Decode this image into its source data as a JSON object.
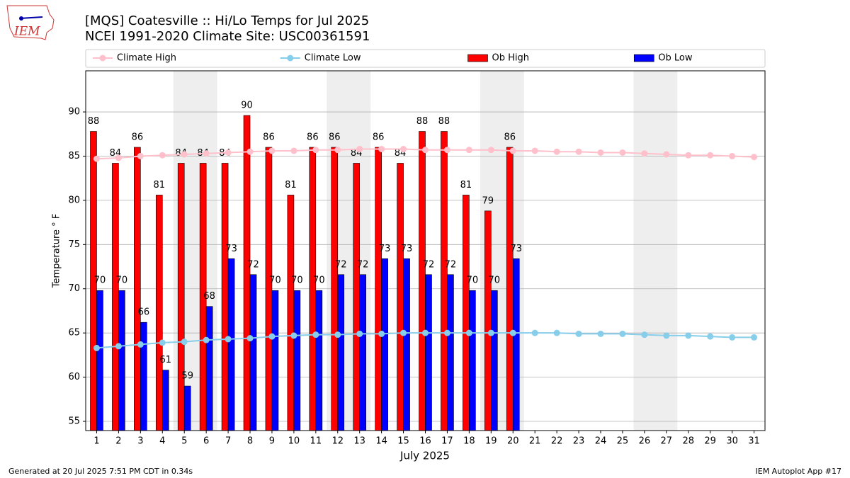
{
  "chart_data": {
    "type": "bar",
    "title": [
      "[MQS] Coatesville :: Hi/Lo Temps for Jul 2025",
      "NCEI 1991-2020 Climate Site: USC00361591"
    ],
    "xlabel": "July 2025",
    "ylabel": "Temperature ° F",
    "footer_left": "Generated at 20 Jul 2025 7:51 PM CDT in 0.34s",
    "footer_right": "IEM Autoplot App #17",
    "logo": "IEM",
    "categories": [
      "1",
      "2",
      "3",
      "4",
      "5",
      "6",
      "7",
      "8",
      "9",
      "10",
      "11",
      "12",
      "13",
      "14",
      "15",
      "16",
      "17",
      "18",
      "19",
      "20",
      "21",
      "22",
      "23",
      "24",
      "25",
      "26",
      "27",
      "28",
      "29",
      "30",
      "31"
    ],
    "shaded_days": [
      [
        "5",
        "6"
      ],
      [
        "12",
        "13"
      ],
      [
        "19",
        "20"
      ],
      [
        "26",
        "27"
      ]
    ],
    "shade_color": "#eeeeee",
    "ylim": [
      53.96,
      94.65
    ],
    "yticks": [
      55,
      60,
      65,
      70,
      75,
      80,
      85,
      90
    ],
    "grid": true,
    "series": [
      {
        "name": "Climate High",
        "type": "line",
        "color": "#ffc0cb",
        "values": [
          84.7,
          84.8,
          85.0,
          85.1,
          85.2,
          85.3,
          85.4,
          85.5,
          85.6,
          85.6,
          85.7,
          85.7,
          85.8,
          85.8,
          85.8,
          85.7,
          85.7,
          85.7,
          85.7,
          85.6,
          85.6,
          85.5,
          85.5,
          85.4,
          85.4,
          85.3,
          85.2,
          85.1,
          85.1,
          85.0,
          84.9
        ]
      },
      {
        "name": "Climate Low",
        "type": "line",
        "color": "#87ceeb",
        "values": [
          63.3,
          63.5,
          63.7,
          63.9,
          64.0,
          64.2,
          64.3,
          64.4,
          64.6,
          64.7,
          64.8,
          64.8,
          64.9,
          64.9,
          65.0,
          65.0,
          65.0,
          65.0,
          65.0,
          65.0,
          65.0,
          65.0,
          64.9,
          64.9,
          64.9,
          64.8,
          64.7,
          64.7,
          64.6,
          64.5,
          64.5
        ]
      },
      {
        "name": "Ob High",
        "type": "bar",
        "color": "#ff0000",
        "values": [
          87.8,
          84.2,
          86.0,
          80.6,
          84.2,
          84.2,
          84.2,
          89.6,
          86.0,
          80.6,
          86.0,
          86.0,
          84.2,
          86.0,
          84.2,
          87.8,
          87.8,
          80.6,
          78.8,
          86.0,
          null,
          null,
          null,
          null,
          null,
          null,
          null,
          null,
          null,
          null,
          null
        ],
        "value_labels": [
          "88",
          "84",
          "86",
          "81",
          "84",
          "84",
          "84",
          "90",
          "86",
          "81",
          "86",
          "86",
          "84",
          "86",
          "84",
          "88",
          "88",
          "81",
          "79",
          "86",
          null,
          null,
          null,
          null,
          null,
          null,
          null,
          null,
          null,
          null,
          null
        ]
      },
      {
        "name": "Ob Low",
        "type": "bar",
        "color": "#0000ff",
        "values": [
          69.8,
          69.8,
          66.2,
          60.8,
          59.0,
          68.0,
          73.4,
          71.6,
          69.8,
          69.8,
          69.8,
          71.6,
          71.6,
          73.4,
          73.4,
          71.6,
          71.6,
          69.8,
          69.8,
          73.4,
          null,
          null,
          null,
          null,
          null,
          null,
          null,
          null,
          null,
          null,
          null
        ],
        "value_labels": [
          "70",
          "70",
          "66",
          "61",
          "59",
          "68",
          "73",
          "72",
          "70",
          "70",
          "70",
          "72",
          "72",
          "73",
          "73",
          "72",
          "72",
          "70",
          "70",
          "73",
          null,
          null,
          null,
          null,
          null,
          null,
          null,
          null,
          null,
          null,
          null
        ]
      }
    ]
  }
}
